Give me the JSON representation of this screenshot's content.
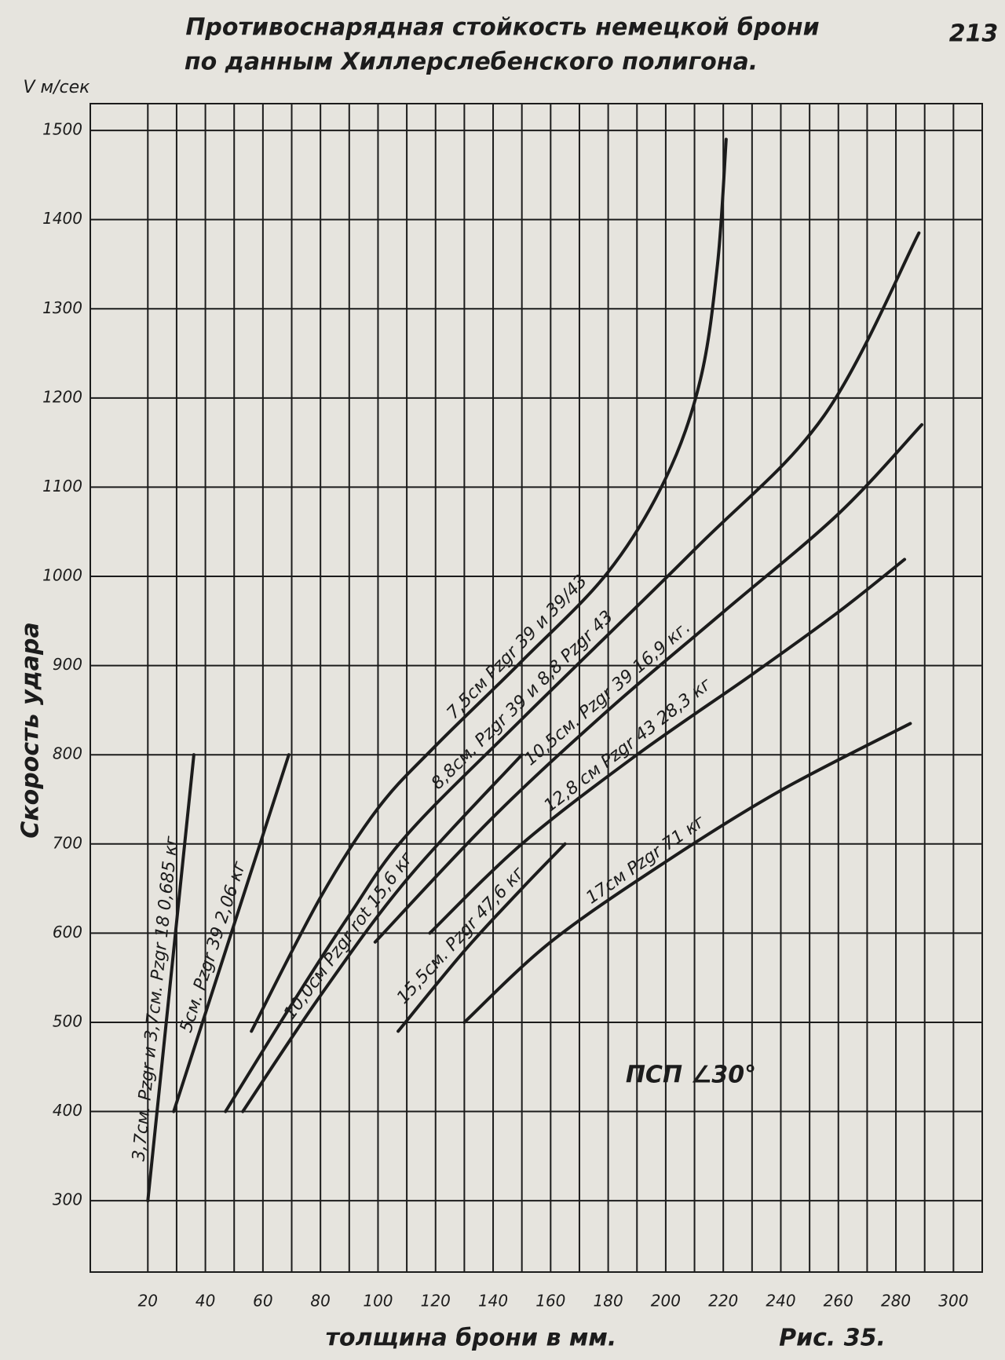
{
  "chart_data": {
    "type": "line",
    "title": "Противоснарядная стойкость немецкой брони",
    "subtitle": "по данным Хиллерслебенского полигона.",
    "page_number": "213",
    "y_unit": "V м/сек",
    "ylabel": "Скорость удара",
    "xlabel": "толщина брони в мм.",
    "figure_label": "Рис. 35.",
    "annotation": "ПСП ∠30°",
    "xlim": [
      0,
      310
    ],
    "ylim": [
      220,
      1530
    ],
    "xticks": [
      20,
      40,
      60,
      80,
      100,
      120,
      140,
      160,
      180,
      200,
      220,
      240,
      260,
      280,
      300
    ],
    "yticks": [
      300,
      400,
      500,
      600,
      700,
      800,
      900,
      1000,
      1100,
      1200,
      1300,
      1400,
      1500
    ],
    "grid": true,
    "color": "#1c1c1c",
    "series": [
      {
        "name": "3,7см. Pzgr и 3,7см. Pzgr 18 0,685 кг",
        "x": [
          20,
          36
        ],
        "values": [
          300,
          800
        ]
      },
      {
        "name": "5см. Pzgr 39 2,06 кг",
        "x": [
          29,
          69
        ],
        "values": [
          400,
          800
        ]
      },
      {
        "name": "7,5см Pzgr 39 и 39/43",
        "x": [
          56,
          80,
          100,
          120,
          150,
          180,
          200,
          212,
          218,
          221
        ],
        "values": [
          490,
          640,
          740,
          810,
          905,
          1005,
          1110,
          1220,
          1350,
          1490
        ]
      },
      {
        "name": "8,8см. Pzgr 39 и 8,8 Pzgr 43",
        "x": [
          47,
          70,
          90,
          110,
          150,
          210,
          255,
          288
        ],
        "values": [
          400,
          520,
          620,
          710,
          840,
          1030,
          1180,
          1385
        ]
      },
      {
        "name": "10,0см Pzgr rot 15,6 кг",
        "x": [
          53,
          80,
          110,
          150
        ],
        "values": [
          400,
          530,
          660,
          800
        ]
      },
      {
        "name": "10,5см. Pzgr 39 16,9 кг.",
        "x": [
          99,
          140,
          180,
          220,
          260,
          289
        ],
        "values": [
          590,
          730,
          850,
          960,
          1070,
          1170
        ]
      },
      {
        "name": "12,8 см Pzgr 43 28,3 кг",
        "x": [
          118,
          150,
          190,
          230,
          260,
          283
        ],
        "values": [
          600,
          700,
          800,
          890,
          960,
          1019
        ]
      },
      {
        "name": "15,5см. Pzgr 47,6 кг",
        "x": [
          107,
          130,
          150,
          165
        ],
        "values": [
          490,
          580,
          650,
          700
        ]
      },
      {
        "name": "17см Pzgr 71 кг",
        "x": [
          130,
          160,
          200,
          240,
          285
        ],
        "values": [
          500,
          590,
          680,
          760,
          835
        ]
      }
    ]
  }
}
